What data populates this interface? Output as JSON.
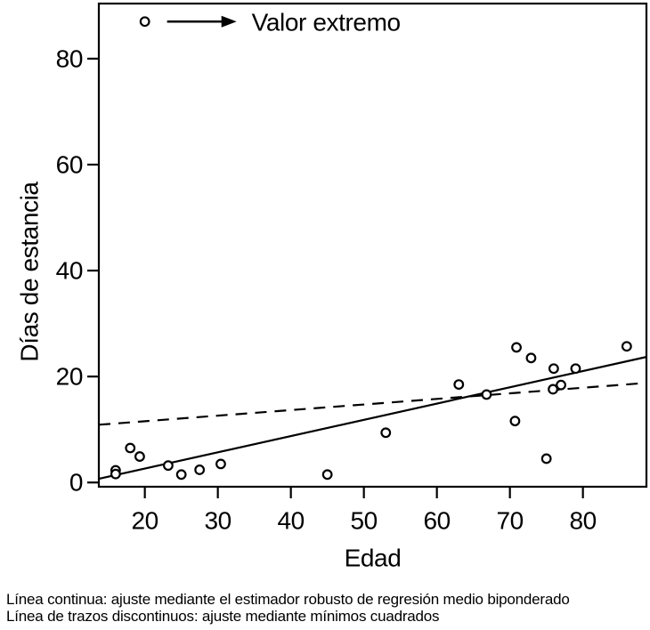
{
  "figure": {
    "caption_lines": [
      "Línea continua: ajuste mediante el estimador robusto de regresión medio biponderado",
      "Línea de trazos discontinuos: ajuste mediante mínimos cuadrados"
    ]
  },
  "chart_data": {
    "type": "scatter",
    "title": "",
    "xlabel": "Edad",
    "ylabel": "Días de estancia",
    "xlim": [
      13.7,
      88.7
    ],
    "ylim": [
      -0.8,
      90.4
    ],
    "x_ticks": [
      20,
      30,
      40,
      50,
      60,
      70,
      80
    ],
    "y_ticks": [
      0,
      20,
      40,
      60,
      80
    ],
    "grid": false,
    "legend_position": "top-left-inside",
    "marker": "open-circle",
    "ink_color": "#000000",
    "background_color": "#ffffff",
    "points": [
      [
        20,
        87
      ],
      [
        16,
        2.3
      ],
      [
        16,
        1.6
      ],
      [
        18,
        6.5
      ],
      [
        19.3,
        4.9
      ],
      [
        23.2,
        3.2
      ],
      [
        25,
        1.5
      ],
      [
        27.5,
        2.4
      ],
      [
        30.4,
        3.5
      ],
      [
        45,
        1.5
      ],
      [
        53,
        9.4
      ],
      [
        63,
        18.5
      ],
      [
        66.8,
        16.6
      ],
      [
        70.7,
        11.6
      ],
      [
        70.9,
        25.5
      ],
      [
        72.9,
        23.5
      ],
      [
        75,
        4.5
      ],
      [
        75.9,
        17.6
      ],
      [
        76,
        21.5
      ],
      [
        77,
        18.4
      ],
      [
        79,
        21.5
      ],
      [
        86,
        25.7
      ]
    ],
    "annotation": {
      "label": "Valor extremo",
      "target_point": [
        20,
        87
      ]
    },
    "fit_lines": [
      {
        "name": "ajuste robusto de regresión medio biponderado",
        "style": "solid",
        "x": [
          13.7,
          88.7
        ],
        "y": [
          0.7,
          23.7
        ]
      },
      {
        "name": "ajuste mediante mínimos cuadrados",
        "style": "dashed",
        "x": [
          13.7,
          88.7
        ],
        "y": [
          10.9,
          18.8
        ]
      }
    ]
  }
}
